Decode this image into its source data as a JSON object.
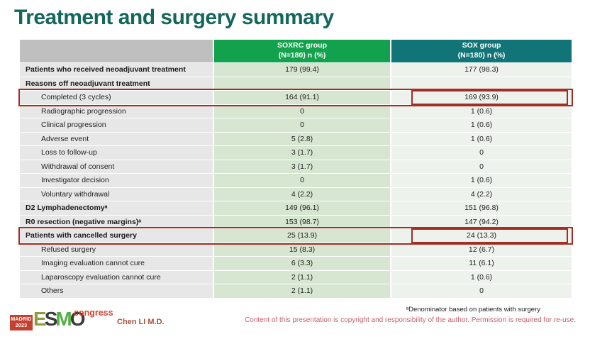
{
  "slide": {
    "title": "Treatment and surgery summary"
  },
  "colors": {
    "title_text": "#14675D",
    "header_soxrc_bg": "#12A24D",
    "header_sox_bg": "#117577",
    "header_corner_bg": "#BFBFBF",
    "label_cell_bg": "#E8E7E7",
    "soxrc_cell_bg": "#D7E6D1",
    "sox_cell_bg": "#EDF2EC",
    "highlight_box": "#A32E24",
    "author_text": "#A4543F",
    "copyright_text": "#C4606C"
  },
  "table": {
    "columns": [
      {
        "name": "SOXRC group",
        "subtitle": "(N=180)  n (%)"
      },
      {
        "name": "SOX group",
        "subtitle": "(N=180)  n (%)"
      }
    ],
    "rows": [
      {
        "label": "Patients who received neoadjuvant treatment",
        "soxrc": "179 (99.4)",
        "sox": "177 (98.3)",
        "bold": true,
        "indent": false,
        "highlight": false
      },
      {
        "label": "Reasons off neoadjuvant treatment",
        "soxrc": "",
        "sox": "",
        "bold": true,
        "indent": false,
        "highlight": false
      },
      {
        "label": "Completed (3 cycles)",
        "soxrc": "164 (91.1)",
        "sox": "169 (93.9)",
        "bold": false,
        "indent": true,
        "highlight": true
      },
      {
        "label": "Radiographic progression",
        "soxrc": "0",
        "sox": "1 (0.6)",
        "bold": false,
        "indent": true,
        "highlight": false
      },
      {
        "label": "Clinical progression",
        "soxrc": "0",
        "sox": "1 (0.6)",
        "bold": false,
        "indent": true,
        "highlight": false
      },
      {
        "label": "Adverse event",
        "soxrc": "5 (2.8)",
        "sox": "1 (0.6)",
        "bold": false,
        "indent": true,
        "highlight": false
      },
      {
        "label": "Loss to follow-up",
        "soxrc": "3 (1.7)",
        "sox": "0",
        "bold": false,
        "indent": true,
        "highlight": false
      },
      {
        "label": "Withdrawal of consent",
        "soxrc": "3 (1.7)",
        "sox": "0",
        "bold": false,
        "indent": true,
        "highlight": false
      },
      {
        "label": "Investigator decision",
        "soxrc": "0",
        "sox": "1 (0.6)",
        "bold": false,
        "indent": true,
        "highlight": false
      },
      {
        "label": "Voluntary withdrawal",
        "soxrc": "4 (2.2)",
        "sox": "4 (2.2)",
        "bold": false,
        "indent": true,
        "highlight": false
      },
      {
        "label": "D2 Lymphadenectomyᵃ",
        "soxrc": "149 (96.1)",
        "sox": "151 (96.8)",
        "bold": true,
        "indent": false,
        "highlight": false
      },
      {
        "label": "R0 resection (negative margins)ᵃ",
        "soxrc": "153 (98.7)",
        "sox": "147 (94.2)",
        "bold": true,
        "indent": false,
        "highlight": false
      },
      {
        "label": "Patients with cancelled surgery",
        "soxrc": "25 (13.9)",
        "sox": "24 (13.3)",
        "bold": true,
        "indent": false,
        "highlight": true
      },
      {
        "label": "Refused surgery",
        "soxrc": "15 (8.3)",
        "sox": "12 (6.7)",
        "bold": false,
        "indent": true,
        "highlight": false
      },
      {
        "label": "Imaging evaluation cannot cure",
        "soxrc": "6 (3.3)",
        "sox": "11 (6.1)",
        "bold": false,
        "indent": true,
        "highlight": false
      },
      {
        "label": "Laparoscopy evaluation cannot cure",
        "soxrc": "2 (1.1)",
        "sox": "1 (0.6)",
        "bold": false,
        "indent": true,
        "highlight": false
      },
      {
        "label": "Others",
        "soxrc": "2 (1.1)",
        "sox": "0",
        "bold": false,
        "indent": true,
        "highlight": false
      }
    ]
  },
  "footer": {
    "logo": {
      "venue_line1": "MADRID",
      "venue_line2": "2023",
      "letters": [
        {
          "ch": "E",
          "color": "#8E9C40"
        },
        {
          "ch": "S",
          "color": "#3B3B3A"
        },
        {
          "ch": "M",
          "color": "#52B043"
        },
        {
          "ch": "O",
          "color": "#3B3B3A"
        }
      ],
      "suffix": "congress"
    },
    "author": "Chen LI M.D.",
    "footnote": "ᵃDenominator based on patients with surgery",
    "copyright": "Content of this presentation is copyright and responsibility of the author. Permission is required for re-use."
  }
}
